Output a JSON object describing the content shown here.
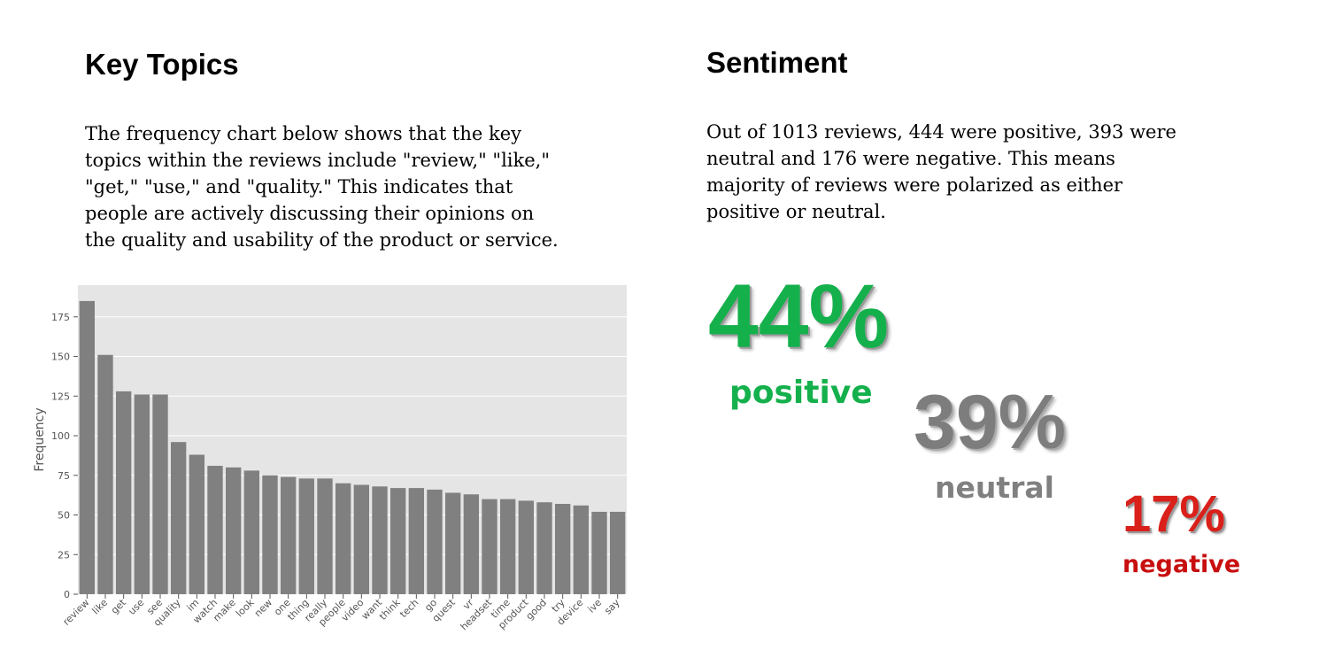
{
  "key_topics": {
    "title": "Key Topics",
    "description": "The frequency chart below shows that the key topics within the reviews include \"review,\" \"like,\" \"get,\" \"use,\" and \"quality.\" This indicates that people are actively discussing their opinions on the quality and usability of the product or service."
  },
  "sentiment": {
    "title": "Sentiment",
    "description": "Out of 1013 reviews, 444 were positive, 393 were neutral and 176 were negative. This means majority of reviews were polarized as either positive or neutral.",
    "positive": {
      "percent": "44%",
      "label": "positive",
      "color": "#14b04c"
    },
    "neutral": {
      "percent": "39%",
      "label": "neutral",
      "color": "#7d7d7d"
    },
    "negative": {
      "percent": "17%",
      "label": "negative",
      "color": "#d9201a"
    }
  },
  "chart_data": {
    "type": "bar",
    "title": "",
    "xlabel": "",
    "ylabel": "Frequency",
    "ylim": [
      0,
      195
    ],
    "yticks": [
      0,
      25,
      50,
      75,
      100,
      125,
      150,
      175
    ],
    "grid": true,
    "bar_color": "#808080",
    "background_color": "#e5e5e5",
    "categories": [
      "review",
      "like",
      "get",
      "use",
      "see",
      "quality",
      "im",
      "watch",
      "make",
      "look",
      "new",
      "one",
      "thing",
      "really",
      "people",
      "video",
      "want",
      "think",
      "tech",
      "go",
      "quest",
      "vr",
      "headset",
      "time",
      "product",
      "good",
      "try",
      "device",
      "ive",
      "say"
    ],
    "values": [
      185,
      151,
      128,
      126,
      126,
      96,
      88,
      81,
      80,
      78,
      75,
      74,
      73,
      73,
      70,
      69,
      68,
      67,
      67,
      66,
      64,
      63,
      60,
      60,
      59,
      58,
      57,
      56,
      52,
      52
    ]
  }
}
